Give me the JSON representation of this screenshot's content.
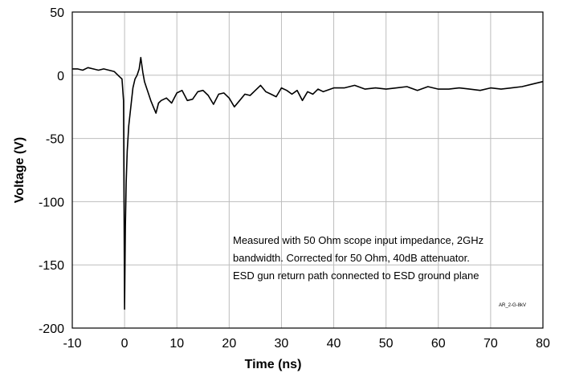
{
  "chart_data": {
    "type": "line",
    "xlabel": "Time (ns)",
    "ylabel": "Voltage (V)",
    "xlim": [
      -10,
      80
    ],
    "ylim": [
      -200,
      50
    ],
    "xticks": [
      -10,
      0,
      10,
      20,
      30,
      40,
      50,
      60,
      70,
      80
    ],
    "yticks": [
      50,
      0,
      -50,
      -100,
      -150,
      -200
    ],
    "grid": true,
    "legend": "none",
    "line_color": "#000000",
    "annotation": [
      "Measured with 50 Ohm scope input impedance, 2GHz",
      "bandwidth.  Corrected for 50 Ohm, 40dB attenuator.",
      "ESD gun return path connected to ESD ground plane"
    ],
    "tag": "AR_2-G-8kV",
    "series": [
      {
        "x": [
          -10,
          -9,
          -8,
          -7,
          -6,
          -5,
          -4,
          -3,
          -2,
          -1.5,
          -1,
          -0.5,
          -0.2,
          0,
          0.15,
          0.3,
          0.5,
          0.8,
          1.2,
          1.6,
          2.0,
          2.4,
          2.8,
          3.1,
          3.3,
          3.5,
          3.8,
          4.2,
          4.6,
          5.0,
          5.5,
          6.0,
          6.5,
          7.0,
          8.0,
          9.0,
          10.0,
          11.0,
          12.0,
          13.0,
          14.0,
          15.0,
          16.0,
          17.0,
          18.0,
          19.0,
          20.0,
          21.0,
          22.0,
          23.0,
          24.0,
          25.0,
          26.0,
          27.0,
          28.0,
          29.0,
          30.0,
          31.0,
          32.0,
          33.0,
          34.0,
          35.0,
          36.0,
          37.0,
          38.0,
          40.0,
          42.0,
          44.0,
          46.0,
          48.0,
          50.0,
          52.0,
          54.0,
          56.0,
          58.0,
          60.0,
          62.0,
          64.0,
          66.0,
          68.0,
          70.0,
          72.0,
          74.0,
          76.0,
          78.0,
          80.0
        ],
        "y": [
          5,
          5,
          4,
          6,
          5,
          4,
          5,
          4,
          3,
          1,
          -1,
          -3,
          -20,
          -185,
          -120,
          -85,
          -60,
          -40,
          -25,
          -10,
          -3,
          0,
          5,
          14,
          8,
          2,
          -5,
          -10,
          -15,
          -20,
          -25,
          -30,
          -22,
          -20,
          -18,
          -22,
          -14,
          -12,
          -20,
          -19,
          -13,
          -12,
          -16,
          -23,
          -15,
          -14,
          -18,
          -25,
          -20,
          -15,
          -16,
          -12,
          -8,
          -13,
          -15,
          -17,
          -10,
          -12,
          -15,
          -12,
          -20,
          -13,
          -15,
          -11,
          -13,
          -10,
          -10,
          -8,
          -11,
          -10,
          -11,
          -10,
          -9,
          -12,
          -9,
          -11,
          -11,
          -10,
          -11,
          -12,
          -10,
          -11,
          -10,
          -9,
          -7,
          -5
        ]
      }
    ]
  }
}
